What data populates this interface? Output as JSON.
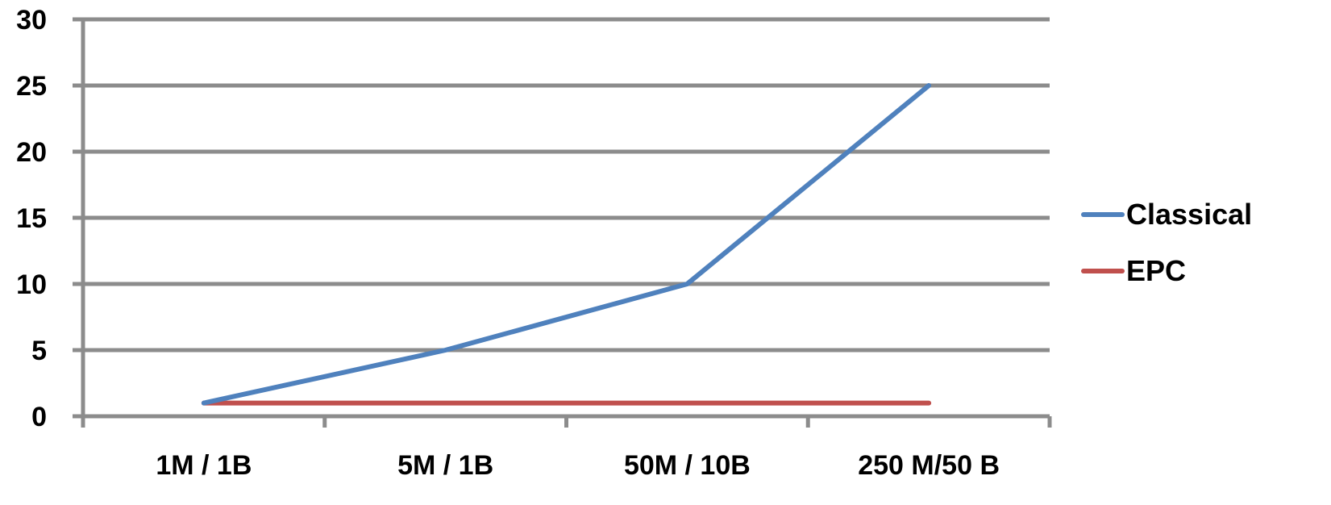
{
  "chart_data": {
    "type": "line",
    "title": "",
    "xlabel": "",
    "ylabel": "",
    "categories": [
      "1M / 1B",
      "5M / 1B",
      "50M / 10B",
      "250 M/50 B"
    ],
    "ylim": [
      0,
      30
    ],
    "yticks": [
      0,
      5,
      10,
      15,
      20,
      25,
      30
    ],
    "grid": true,
    "legend_position": "right",
    "series": [
      {
        "name": "Classical",
        "color": "#4f81bd",
        "values": [
          1,
          5,
          10,
          25
        ]
      },
      {
        "name": "EPC",
        "color": "#c0504d",
        "values": [
          1,
          1,
          1,
          1
        ]
      }
    ],
    "colors": {
      "gridline": "#8c8c8c",
      "axis": "#8c8c8c"
    }
  }
}
